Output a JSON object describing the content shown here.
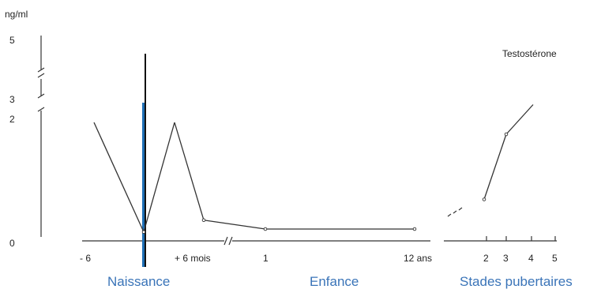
{
  "colors": {
    "ink": "#333333",
    "birth_band": "#1f6fb5",
    "phase_label": "#3a74b8"
  },
  "chart_data": {
    "type": "line",
    "title": "",
    "series_label": "Testostérone",
    "ylabel": "ng/ml",
    "y_ticks": [
      "0",
      "2",
      "3",
      "5"
    ],
    "y_axis_broken": true,
    "x_axis_broken": true,
    "x_ticks": {
      "prenatal_infancy": [
        "- 6",
        "+ 6 mois"
      ],
      "childhood": [
        "1",
        "12 ans"
      ],
      "puberty": [
        "2",
        "3",
        "4",
        "5"
      ]
    },
    "phases": [
      "Naissance",
      "Enfance",
      "Stades pubertaires"
    ],
    "series": [
      {
        "name": "Testostérone",
        "points": [
          {
            "x": "- 6",
            "y": 2.0,
            "style": "dashed"
          },
          {
            "x": "Naissance",
            "y": 0.15,
            "style": "solid"
          },
          {
            "x": "~ +3 mois",
            "y": 2.0,
            "style": "solid"
          },
          {
            "x": "+ 6 mois",
            "y": 0.35,
            "style": "solid"
          },
          {
            "x": "1",
            "y": 0.2,
            "style": "solid"
          },
          {
            "x": "12 ans",
            "y": 0.2,
            "style": "solid"
          },
          {
            "x": "stade 2",
            "y": 0.7,
            "style": "solid"
          },
          {
            "x": "stade 3",
            "y": 1.8,
            "style": "solid"
          },
          {
            "x": "stade 4",
            "y": 2.3,
            "style": "solid"
          }
        ]
      }
    ]
  }
}
